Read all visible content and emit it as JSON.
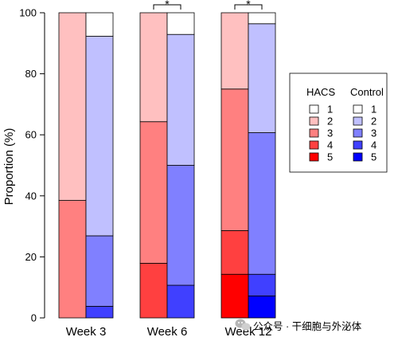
{
  "chart_data": {
    "type": "bar",
    "stacked": true,
    "ylabel": "Proportion (%)",
    "xlabel": "",
    "ylim": [
      0,
      100
    ],
    "yticks": [
      0,
      20,
      40,
      60,
      80,
      100
    ],
    "categories": [
      "Week 3",
      "Week 6",
      "Week 12"
    ],
    "levels": [
      "1",
      "2",
      "3",
      "4",
      "5"
    ],
    "groups": [
      {
        "name": "HACS",
        "colors": {
          "1": "#ffffff",
          "2": "#ffc0c0",
          "3": "#ff8080",
          "4": "#ff4040",
          "5": "#ff0000"
        },
        "values": [
          {
            "1": 0,
            "2": 61.5,
            "3": 38.5,
            "4": 0,
            "5": 0
          },
          {
            "1": 0,
            "2": 35.7,
            "3": 46.4,
            "4": 17.9,
            "5": 0
          },
          {
            "1": 0,
            "2": 25,
            "3": 46.4,
            "4": 14.3,
            "5": 14.3
          }
        ]
      },
      {
        "name": "Control",
        "colors": {
          "1": "#ffffff",
          "2": "#c0c0ff",
          "3": "#8080ff",
          "4": "#4040ff",
          "5": "#0000ff"
        },
        "values": [
          {
            "1": 7.7,
            "2": 65.4,
            "3": 23.1,
            "4": 3.8,
            "5": 0
          },
          {
            "1": 7.1,
            "2": 42.9,
            "3": 39.3,
            "4": 10.7,
            "5": 0
          },
          {
            "1": 3.6,
            "2": 35.7,
            "3": 46.4,
            "4": 7.1,
            "5": 7.2
          }
        ]
      }
    ],
    "significance": [
      {
        "category": "Week 6",
        "label": "*"
      },
      {
        "category": "Week 12",
        "label": "*"
      }
    ],
    "legend": {
      "placement": "right",
      "columns": [
        "HACS",
        "Control"
      ],
      "entries": [
        "1",
        "2",
        "3",
        "4",
        "5"
      ]
    }
  },
  "watermark": {
    "text": "公众号 · 干细胞与外泌体",
    "icon": "wechat-icon"
  }
}
